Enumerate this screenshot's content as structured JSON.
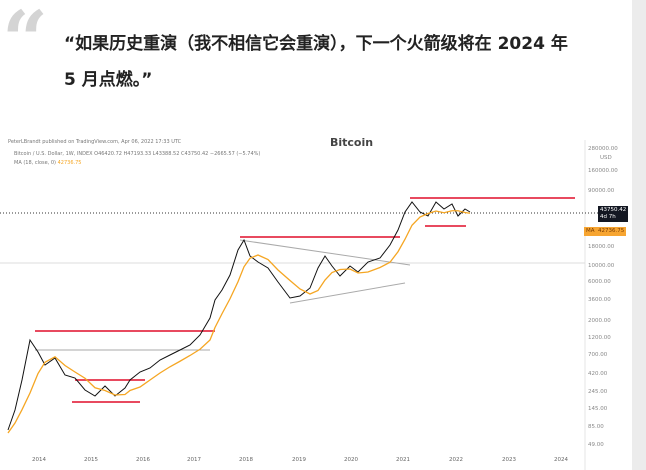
{
  "quote": {
    "mark": "“",
    "text": "“如果历史重演（我不相信它会重演），下一个火箭级将在 2024 年 5 月点燃。”"
  },
  "chart": {
    "publisher": "PeterLBrandt published on TradingView.com, Apr 06, 2022 17:33 UTC",
    "watermark": "Bitcoin",
    "symbol_line": "Bitcoin / U.S. Dollar, 1W, INDEX  O46420.72  H47193.33  L43388.52  C43750.42  −2665.57 (−5.74%)",
    "ma_label": "MA (18, close, 0)",
    "ma_value": "42736.75",
    "currency": "USD",
    "y_ticks": [
      "280000.00",
      "160000.00",
      "90000.00",
      "18000.00",
      "10000.00",
      "6000.00",
      "3600.00",
      "2000.00",
      "1200.00",
      "700.00",
      "420.00",
      "245.00",
      "145.00",
      "85.00",
      "49.00"
    ],
    "x_ticks": [
      "2014",
      "2015",
      "2016",
      "2017",
      "2018",
      "2019",
      "2020",
      "2021",
      "2022",
      "2023",
      "2024"
    ],
    "price_tag": "43750.42",
    "price_tag_sub": "4d 7h",
    "ma_tag_label": "MA",
    "ma_tag_value": "42736.75",
    "colors": {
      "price": "#111111",
      "ma": "#f5a623",
      "resistance": "#e84a5f",
      "trend": "#999999",
      "tag": "#131722",
      "ma_tag": "#f7a531"
    }
  }
}
